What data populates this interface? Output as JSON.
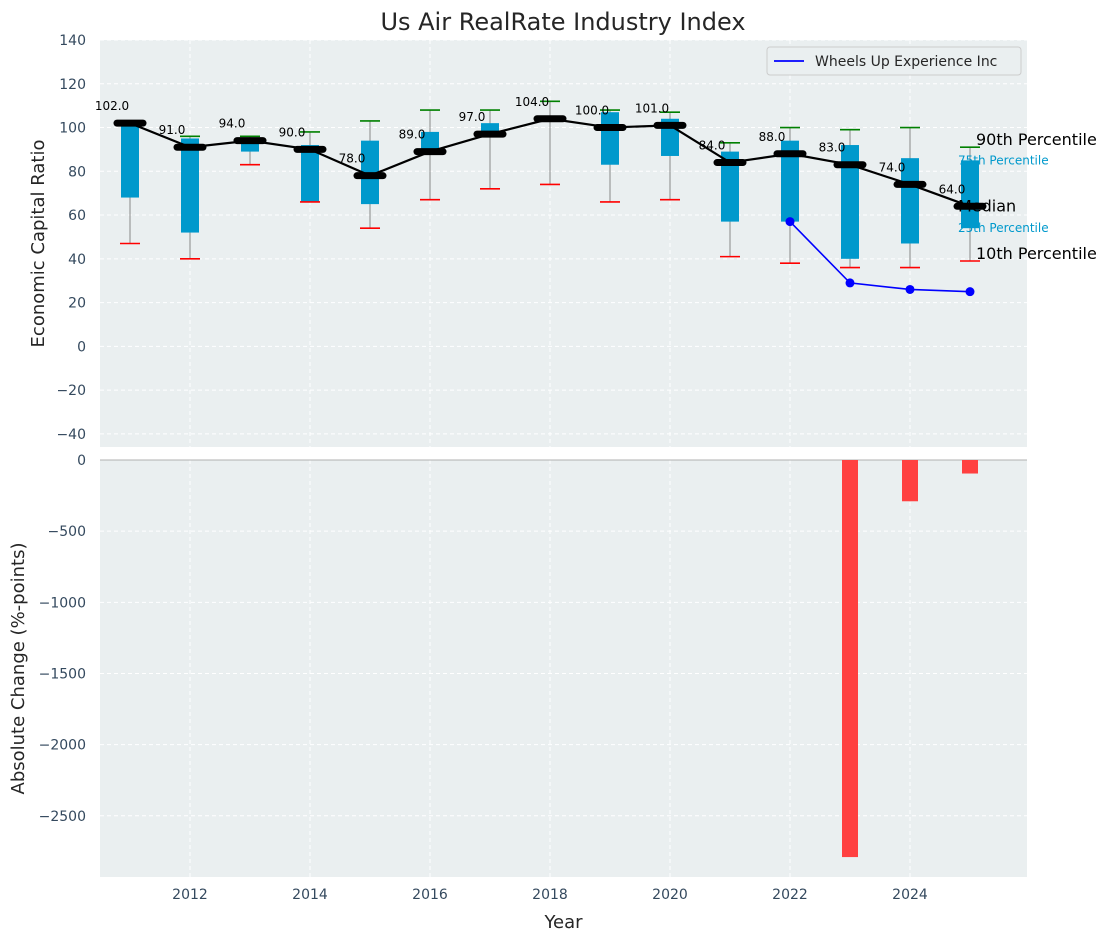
{
  "chart_data": {
    "type": "bar",
    "title": "Us Air RealRate Industry Index",
    "xlabel": "Year",
    "top_panel": {
      "ylabel": "Economic Capital Ratio",
      "ylim": [
        -46,
        140
      ],
      "yticks": [
        140,
        120,
        100,
        80,
        60,
        40,
        20,
        0,
        -20,
        -40
      ],
      "ytick_labels": [
        "140",
        "120",
        "100",
        "80",
        "60",
        "40",
        "20",
        "0",
        "−20",
        "−40"
      ],
      "years": [
        2011,
        2012,
        2013,
        2014,
        2015,
        2016,
        2017,
        2018,
        2019,
        2020,
        2021,
        2022,
        2023,
        2024,
        2025
      ],
      "median": [
        102,
        91,
        94,
        90,
        78,
        89,
        97,
        104,
        100,
        101,
        84,
        88,
        83,
        74,
        64
      ],
      "median_labels": [
        "102.0",
        "91.0",
        "94.0",
        "90.0",
        "78.0",
        "89.0",
        "97.0",
        "104.0",
        "100.0",
        "101.0",
        "84.0",
        "88.0",
        "83.0",
        "74.0",
        "64.0"
      ],
      "p25": [
        68,
        52,
        89,
        66,
        65,
        89,
        97,
        104,
        83,
        87,
        57,
        57,
        40,
        47,
        54
      ],
      "p75": [
        101,
        95,
        94,
        92,
        94,
        98,
        102,
        104,
        107,
        104,
        89,
        94,
        92,
        86,
        85
      ],
      "p10": [
        47,
        40,
        83,
        66,
        54,
        67,
        72,
        74,
        66,
        67,
        41,
        38,
        36,
        36,
        39
      ],
      "p90": [
        102,
        96,
        96,
        98,
        103,
        108,
        108,
        112,
        108,
        107,
        93,
        100,
        99,
        100,
        91
      ],
      "company": {
        "name": "Wheels Up Experience Inc",
        "years": [
          2022,
          2023,
          2024,
          2025
        ],
        "values": [
          57,
          29,
          26,
          25
        ]
      },
      "annotations": {
        "p90": "90th Percentile",
        "p75": "75th Percentile",
        "median": "Median",
        "p25": "25th Percentile",
        "p10": "10th Percentile"
      }
    },
    "bottom_panel": {
      "ylabel": "Absolute Change (%-points)",
      "ylim": [
        -2930,
        0
      ],
      "yticks": [
        0,
        -500,
        -1000,
        -1500,
        -2000,
        -2500
      ],
      "ytick_labels": [
        "0",
        "−500",
        "−1000",
        "−1500",
        "−2000",
        "−2500"
      ],
      "bars": [
        {
          "year": 2023,
          "value": -2790
        },
        {
          "year": 2024,
          "value": -290
        },
        {
          "year": 2025,
          "value": -95
        }
      ]
    },
    "xlim": [
      2010.5,
      2025.95
    ],
    "xticks": [
      2012,
      2014,
      2016,
      2018,
      2020,
      2022,
      2024
    ],
    "legend_position": "top-right",
    "grid": true,
    "colors": {
      "background": "#eaeff0",
      "iqr_bar": "#0099cc",
      "median_line": "#000000",
      "company_line": "#0000ff",
      "p90_cap": "#008000",
      "p10_cap": "#ff0000",
      "whisker": "#888888",
      "change_bar": "#ff4040"
    }
  }
}
